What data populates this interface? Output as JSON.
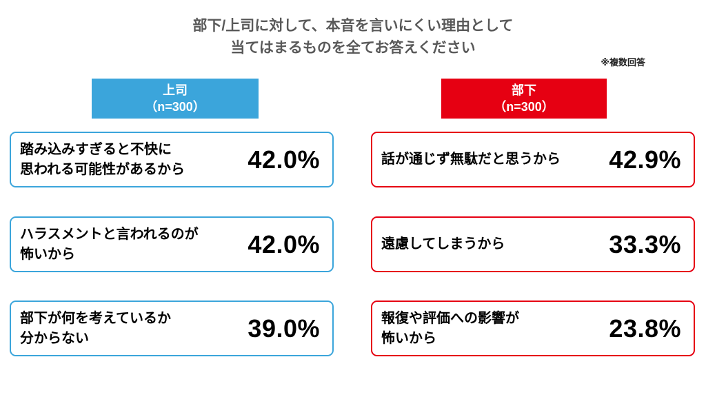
{
  "title": {
    "line1": "部下/上司に対して、本音を言いにくい理由として",
    "line2": "当てはまるものを全てお答えください"
  },
  "note": "※複数回答",
  "colors": {
    "boss_accent": "#3BA5DB",
    "subordinate_accent": "#E60012",
    "title_text": "#595959",
    "value_text": "#000000"
  },
  "groups": [
    {
      "label": "上司",
      "sample": "（n=300）",
      "items": [
        {
          "reason": "踏み込みすぎると不快に\n思われる可能性があるから",
          "value": "42.0%"
        },
        {
          "reason": "ハラスメントと言われるのが\n怖いから",
          "value": "42.0%"
        },
        {
          "reason": "部下が何を考えているか\n分からない",
          "value": "39.0%"
        }
      ]
    },
    {
      "label": "部下",
      "sample": "（n=300）",
      "items": [
        {
          "reason": "話が通じず無駄だと思うから",
          "value": "42.9%"
        },
        {
          "reason": "遠慮してしまうから",
          "value": "33.3%"
        },
        {
          "reason": "報復や評価への影響が\n怖いから",
          "value": "23.8%"
        }
      ]
    }
  ],
  "chart_data": {
    "type": "table",
    "title": "部下/上司に対して、本音を言いにくい理由として当てはまるものを全てお答えください",
    "note": "※複数回答",
    "unit": "%",
    "series": [
      {
        "name": "上司",
        "n": 300,
        "categories": [
          "踏み込みすぎると不快に思われる可能性があるから",
          "ハラスメントと言われるのが怖いから",
          "部下が何を考えているか分からない"
        ],
        "values": [
          42.0,
          42.0,
          39.0
        ]
      },
      {
        "name": "部下",
        "n": 300,
        "categories": [
          "話が通じず無駄だと思うから",
          "遠慮してしまうから",
          "報復や評価への影響が怖いから"
        ],
        "values": [
          42.9,
          33.3,
          23.8
        ]
      }
    ]
  }
}
